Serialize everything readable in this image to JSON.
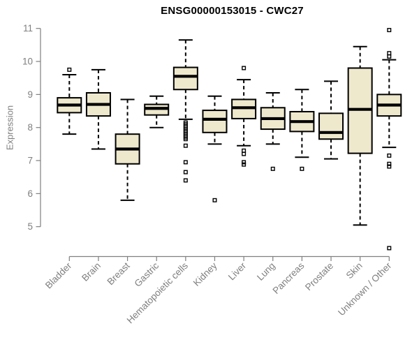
{
  "chart_data": {
    "type": "boxplot",
    "title": "ENSG00000153015 - CWC27",
    "ylabel": "Expression",
    "xlabel": "",
    "yticks": [
      5,
      6,
      7,
      8,
      9,
      10,
      11
    ],
    "y_axis_range": [
      5,
      11
    ],
    "grid": "off",
    "legend": "none",
    "categories": [
      "Bladder",
      "Brain",
      "Breast",
      "Gastric",
      "Hematopoietic cells",
      "Kidney",
      "Liver",
      "Lung",
      "Pancreas",
      "Prostate",
      "Skin",
      "Unknown / Other"
    ],
    "boxes": [
      {
        "category": "Bladder",
        "whisker_low": 7.8,
        "q1": 8.45,
        "median": 8.68,
        "q3": 8.9,
        "whisker_high": 9.6,
        "outliers": [
          9.75
        ]
      },
      {
        "category": "Brain",
        "whisker_low": 7.35,
        "q1": 8.35,
        "median": 8.7,
        "q3": 9.05,
        "whisker_high": 9.75,
        "outliers": []
      },
      {
        "category": "Breast",
        "whisker_low": 5.8,
        "q1": 6.9,
        "median": 7.35,
        "q3": 7.8,
        "whisker_high": 8.85,
        "outliers": []
      },
      {
        "category": "Gastric",
        "whisker_low": 8.0,
        "q1": 8.38,
        "median": 8.58,
        "q3": 8.7,
        "whisker_high": 8.95,
        "outliers": []
      },
      {
        "category": "Hematopoietic cells",
        "whisker_low": 8.25,
        "q1": 9.15,
        "median": 9.55,
        "q3": 9.82,
        "whisker_high": 10.65,
        "outliers": [
          8.15,
          8.1,
          8.05,
          8.0,
          7.95,
          7.9,
          7.85,
          7.8,
          7.75,
          7.7,
          7.65,
          7.45,
          6.95,
          6.65,
          6.4
        ]
      },
      {
        "category": "Kidney",
        "whisker_low": 7.5,
        "q1": 7.85,
        "median": 8.25,
        "q3": 8.52,
        "whisker_high": 8.95,
        "outliers": [
          5.8
        ]
      },
      {
        "category": "Liver",
        "whisker_low": 7.45,
        "q1": 8.27,
        "median": 8.6,
        "q3": 8.85,
        "whisker_high": 9.45,
        "outliers": [
          9.8,
          7.3,
          7.2,
          6.95,
          6.88
        ]
      },
      {
        "category": "Lung",
        "whisker_low": 7.5,
        "q1": 7.95,
        "median": 8.27,
        "q3": 8.6,
        "whisker_high": 9.05,
        "outliers": [
          6.75
        ]
      },
      {
        "category": "Pancreas",
        "whisker_low": 7.1,
        "q1": 7.88,
        "median": 8.18,
        "q3": 8.48,
        "whisker_high": 9.15,
        "outliers": [
          6.75
        ]
      },
      {
        "category": "Prostate",
        "whisker_low": 7.05,
        "q1": 7.65,
        "median": 7.85,
        "q3": 8.43,
        "whisker_high": 9.4,
        "outliers": []
      },
      {
        "category": "Skin",
        "whisker_low": 5.05,
        "q1": 7.22,
        "median": 8.55,
        "q3": 9.8,
        "whisker_high": 10.45,
        "outliers": []
      },
      {
        "category": "Unknown / Other",
        "whisker_low": 7.4,
        "q1": 8.35,
        "median": 8.68,
        "q3": 9.0,
        "whisker_high": 10.05,
        "outliers": [
          10.95,
          10.25,
          10.15,
          7.15,
          6.9,
          6.82,
          4.35
        ]
      }
    ],
    "colors": {
      "box_fill": "#EEE8CD",
      "box_stroke": "#000000",
      "median": "#000000",
      "axis": "#7F7F7F",
      "tick_label": "#7F7F7F",
      "title": "#000000",
      "background": "#FFFFFF"
    }
  }
}
